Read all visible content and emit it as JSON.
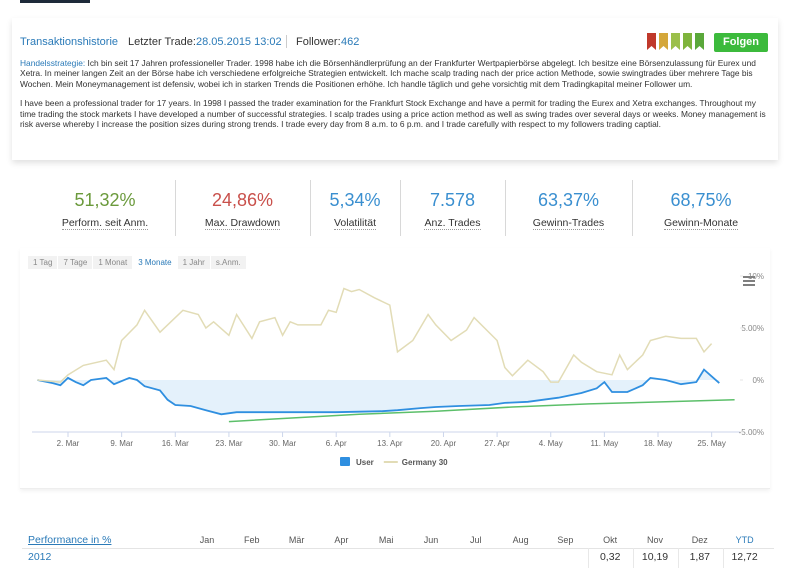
{
  "header": {
    "tab": "Transaktionshistorie",
    "last_trade_label": "Letzter Trade:",
    "last_trade": "28.05.2015 13:02",
    "follower_label": "Follower:",
    "followers": "462",
    "follow_button": "Folgen"
  },
  "strategy": {
    "label": "Handelsstrategie:",
    "text_de": "Ich bin seit 17 Jahren professioneller Trader. 1998 habe ich die Börsenhändlerprüfung an der Frankfurter Wertpapierbörse abgelegt. Ich besitze eine Börsenzulassung für Eurex und Xetra. In meiner langen Zeit an der Börse habe ich verschiedene erfolgreiche Strategien entwickelt. Ich mache scalp trading nach der price action Methode, sowie swingtrades über mehrere Tage bis Wochen. Mein Moneymanagement ist defensiv, wobei ich in starken Trends die Positionen erhöhe. Ich handle täglich und gehe vorsichtig mit dem Tradingkapital meiner Follower um.",
    "text_en": "I have been a professional trader for 17 years. In 1998 I passed the trader examination for the Frankfurt Stock Exchange and have a permit for trading the Eurex and Xetra exchanges. Throughout my time trading the stock markets I have developed a number of successful strategies. I scalp trades using a price action method as well as swing trades over several days or weeks. Money management is risk averse whereby I increase the position sizes during strong trends. I trade every day from 8 a.m. to 6 p.m. and I trade carefully with respect to my followers trading captial."
  },
  "stats": [
    {
      "value": "51,32%",
      "label": "Perform. seit Anm.",
      "color": "#6b9a3c"
    },
    {
      "value": "24,86%",
      "label": "Max. Drawdown",
      "color": "#c9504b"
    },
    {
      "value": "5,34%",
      "label": "Volatilität",
      "color": "#3a8fd0"
    },
    {
      "value": "7.578",
      "label": "Anz. Trades",
      "color": "#3a8fd0"
    },
    {
      "value": "63,37%",
      "label": "Gewinn-Trades",
      "color": "#3a8fd0"
    },
    {
      "value": "68,75%",
      "label": "Gewinn-Monate",
      "color": "#3a8fd0"
    }
  ],
  "range_tabs": {
    "items": [
      "1 Tag",
      "7 Tage",
      "1 Monat",
      "3 Monate",
      "1 Jahr",
      "s.Anm."
    ],
    "active": 3
  },
  "chart_data": {
    "type": "line",
    "xlim": [
      -2.7,
      89.7
    ],
    "xticks": [
      {
        "value": 2,
        "label": "2. Mar"
      },
      {
        "value": 9,
        "label": "9. Mar"
      },
      {
        "value": 16,
        "label": "16. Mar"
      },
      {
        "value": 23,
        "label": "23. Mar"
      },
      {
        "value": 30,
        "label": "30. Mar"
      },
      {
        "value": 37,
        "label": "6. Apr"
      },
      {
        "value": 44,
        "label": "13. Apr"
      },
      {
        "value": 51,
        "label": "20. Apr"
      },
      {
        "value": 58,
        "label": "27. Apr"
      },
      {
        "value": 65,
        "label": "4. May"
      },
      {
        "value": 72,
        "label": "11. May"
      },
      {
        "value": 79,
        "label": "18. May"
      },
      {
        "value": 86,
        "label": "25. May"
      }
    ],
    "ylim": [
      -5,
      11
    ],
    "yticks": [
      {
        "value": 10,
        "label": "10%"
      },
      {
        "value": 5,
        "label": "5.00%"
      },
      {
        "value": 0,
        "label": "0%"
      },
      {
        "value": -5,
        "label": "-5.00%"
      }
    ],
    "grid": false,
    "series": [
      {
        "name": "User",
        "color": "#2f8fe0",
        "area": true,
        "x": [
          -2,
          0,
          1,
          2,
          3,
          4,
          5,
          7,
          8,
          10,
          11,
          12,
          14,
          15,
          16,
          18,
          20,
          22,
          24,
          26,
          31,
          37,
          43,
          45,
          48,
          50,
          53,
          57,
          59,
          62,
          66,
          69,
          71,
          72,
          73,
          75,
          77,
          78,
          80,
          82,
          84,
          85,
          87
        ],
        "values": [
          0,
          -0.3,
          -0.5,
          0.2,
          -0.2,
          -0.5,
          0,
          0.2,
          -0.4,
          0.2,
          0,
          -0.6,
          -1.0,
          -1.9,
          -2.4,
          -2.5,
          -2.9,
          -3.3,
          -3.1,
          -3.1,
          -3.1,
          -3.1,
          -3.0,
          -2.9,
          -2.7,
          -2.6,
          -2.5,
          -2.4,
          -2.2,
          -2.1,
          -1.7,
          -1.25,
          -0.8,
          -0.2,
          -1.15,
          -1.15,
          -0.5,
          0.2,
          0,
          -0.4,
          -0.2,
          1.0,
          -0.3
        ]
      },
      {
        "name": "Germany 30",
        "color": "#e2dcb6",
        "x": [
          -2,
          1,
          2,
          4,
          7,
          8,
          9,
          11,
          12,
          14,
          17,
          19,
          20,
          21,
          23,
          24,
          26,
          27,
          29,
          30,
          31,
          32,
          35,
          36,
          37,
          38,
          39,
          40,
          42,
          44,
          45,
          47,
          49,
          50,
          52,
          54,
          55,
          58,
          59,
          60,
          62,
          64,
          65,
          66,
          68,
          69,
          71,
          73,
          74,
          75,
          77,
          78,
          80,
          82,
          84,
          85,
          86
        ],
        "values": [
          0,
          -0.2,
          0.5,
          1.4,
          1.9,
          1.0,
          3.8,
          5.3,
          6.7,
          4.6,
          6.7,
          6.3,
          5.0,
          5.6,
          4.3,
          6.3,
          4.0,
          5.6,
          6.0,
          4.3,
          5.6,
          5.3,
          5.3,
          6.7,
          6.5,
          8.8,
          8.5,
          8.7,
          7.9,
          7.2,
          2.7,
          3.8,
          6.3,
          5.3,
          3.8,
          4.8,
          6.0,
          3.8,
          1.2,
          0.4,
          1.9,
          0.8,
          -0.2,
          -0.2,
          2.4,
          1.7,
          0.8,
          0.5,
          2.4,
          1.0,
          2.4,
          3.8,
          4.2,
          4.0,
          4.0,
          2.7,
          3.5
        ]
      },
      {
        "color": "#5cbf6a",
        "x": [
          23,
          30,
          40,
          50,
          60,
          70,
          80,
          89
        ],
        "values": [
          -4.0,
          -3.7,
          -3.3,
          -3.0,
          -2.6,
          -2.3,
          -2.1,
          -1.9
        ]
      }
    ]
  },
  "performance_table": {
    "title": "Performance in %",
    "columns": [
      "Jan",
      "Feb",
      "Mär",
      "Apr",
      "Mai",
      "Jun",
      "Jul",
      "Aug",
      "Sep",
      "Okt",
      "Nov",
      "Dez",
      "YTD"
    ],
    "rows": [
      {
        "year": "2012",
        "values": [
          null,
          null,
          null,
          null,
          null,
          null,
          null,
          null,
          null,
          "0,32",
          "10,19",
          "1,87",
          "12,72"
        ]
      }
    ]
  }
}
